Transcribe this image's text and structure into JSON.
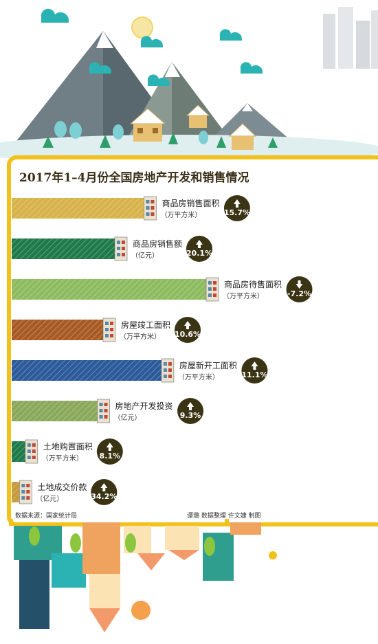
{
  "title": "2017年1–4月份全国房地产开发和销售情况",
  "source": "数据来源：国家统计局",
  "credit": "谭璐  数据整理    许文婕  制图",
  "colors": {
    "frame": "#f2c21b",
    "badge": "#3b3414",
    "sky_teal": "#2ab3b2"
  },
  "chart_data": {
    "type": "bar",
    "orientation": "horizontal",
    "categories": [
      "商品房销售面积",
      "商品房销售额",
      "商品房待售面积",
      "房屋竣工面积",
      "房屋新开工面积",
      "房地产开发投资",
      "土地购置面积",
      "土地成交价款"
    ],
    "units": [
      "（万平方米）",
      "（亿元）",
      "（万平方米）",
      "（万平方米）",
      "（万平方米）",
      "（亿元）",
      "（万平方米）",
      "（亿元）"
    ],
    "growth_labels": [
      "15.7%",
      "20.1%",
      "-7.2%",
      "10.6%",
      "11.1%",
      "9.3%",
      "8.1%",
      "34.2%"
    ],
    "values": [
      15.7,
      20.1,
      -7.2,
      10.6,
      11.1,
      9.3,
      8.1,
      34.2
    ],
    "bar_colors": [
      "#d8b24a",
      "#1f7a4a",
      "#8dbb5f",
      "#a85a24",
      "#2c5a9a",
      "#8aa95a",
      "#1f7a4a",
      "#c79a3a"
    ],
    "bar_lengths_relative": [
      0.68,
      0.53,
      1.0,
      0.47,
      0.77,
      0.44,
      0.07,
      0.04
    ]
  }
}
